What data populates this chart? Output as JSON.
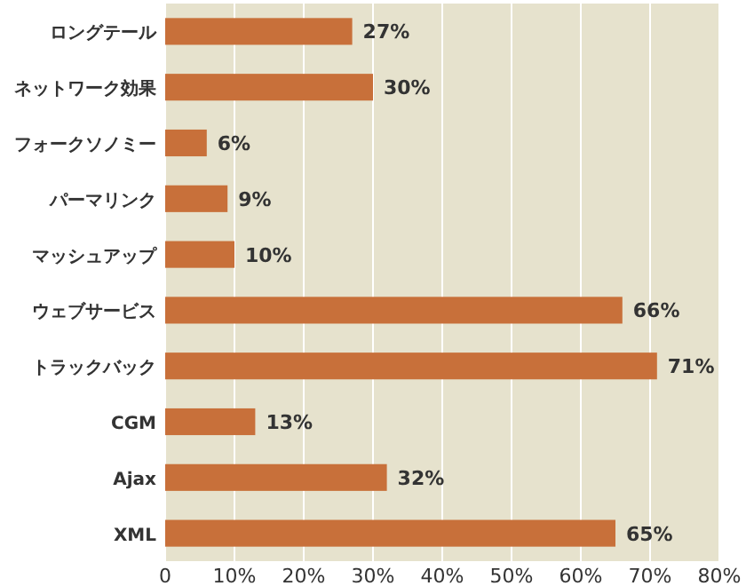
{
  "chart_data": {
    "type": "bar",
    "orientation": "horizontal",
    "categories": [
      "ロングテール",
      "ネットワーク効果",
      "フォークソノミー",
      "パーマリンク",
      "マッシュアップ",
      "ウェブサービス",
      "トラックバック",
      "CGM",
      "Ajax",
      "XML"
    ],
    "values": [
      27,
      30,
      6,
      9,
      10,
      66,
      71,
      13,
      32,
      65
    ],
    "value_labels": [
      "27%",
      "30%",
      "6%",
      "9%",
      "10%",
      "66%",
      "71%",
      "13%",
      "32%",
      "65%"
    ],
    "color": "#c8703a",
    "xlim": [
      0,
      80
    ],
    "xticks": [
      0,
      {
        "value": 10,
        "label": "10%"
      },
      {
        "value": 20,
        "label": "20%"
      },
      {
        "value": 30,
        "label": "30%"
      },
      {
        "value": 40,
        "label": "40%"
      },
      {
        "value": 50,
        "label": "50%"
      },
      {
        "value": 60,
        "label": "60%"
      },
      {
        "value": 70,
        "label": "70%"
      },
      {
        "value": 80,
        "label": "80%"
      }
    ],
    "grid": "x"
  }
}
